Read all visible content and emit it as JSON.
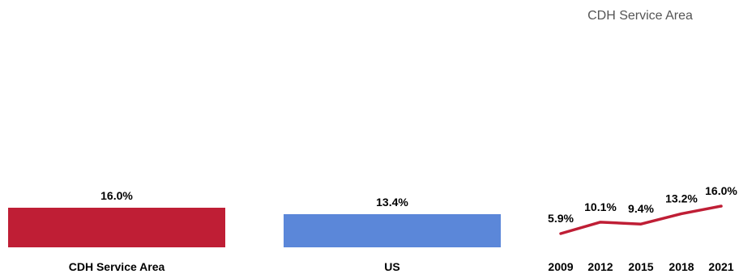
{
  "chart_data": [
    {
      "type": "bar",
      "categories": [
        "CDH Service Area",
        "US"
      ],
      "values": [
        16.0,
        13.4
      ],
      "value_labels": [
        "16.0%",
        "13.4%"
      ],
      "colors": [
        "#bf1e35",
        "#5b87d9"
      ],
      "grid": false
    },
    {
      "type": "line",
      "title": "CDH Service Area",
      "x": [
        "2009",
        "2012",
        "2015",
        "2018",
        "2021"
      ],
      "values": [
        5.9,
        10.1,
        9.4,
        13.2,
        16.0
      ],
      "value_labels": [
        "5.9%",
        "10.1%",
        "9.4%",
        "13.2%",
        "16.0%"
      ],
      "color": "#bf1e35",
      "grid": false
    }
  ]
}
